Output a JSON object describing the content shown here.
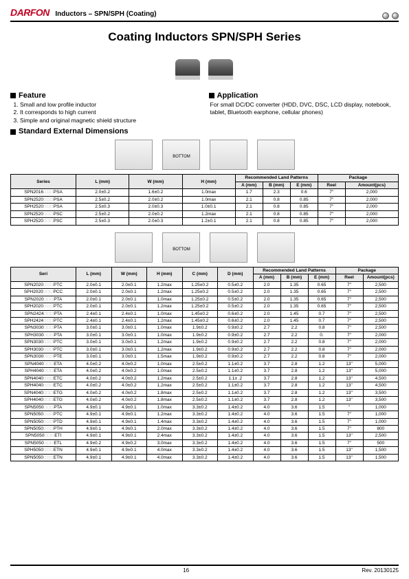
{
  "header": {
    "logo_text": "DARFON",
    "subtitle": "Inductors – SPN/SPH (Coating)"
  },
  "title": "Coating Inductors SPN/SPH Series",
  "feature": {
    "heading": "Feature",
    "items": [
      "Small and low profile inductor",
      "It corresponds to high current",
      "Simple and original magnetic shield structure"
    ]
  },
  "application": {
    "heading": "Application",
    "text": "For small DC/DC converter (HDD, DVC, DSC, LCD display, notebook, tablet, Bluetooth earphone, cellular phones)"
  },
  "std_dim_heading": "Standard External Dimensions",
  "table1": {
    "headers": {
      "series": "Series",
      "l": "L\n(mm)",
      "w": "W\n(mm)",
      "h": "H\n(mm)",
      "rec": "Recommended Land Patterns",
      "a": "A\n(mm)",
      "b": "B\n(mm)",
      "e": "E\n(mm)",
      "pkg": "Package",
      "reel": "Reel",
      "amt": "Amount(pcs)"
    },
    "rows": [
      {
        "series": "SPN2016",
        "suf": "PSA",
        "l": "2.0±0.2",
        "w": "1.6±0.2",
        "h": "1.0max",
        "a": "1.7",
        "b": "2.3",
        "e": "0.6",
        "reel": "7\"",
        "amt": "2,000"
      },
      {
        "series": "SPN2520",
        "suf": "PSA",
        "l": "2.5±0.2",
        "w": "2.0±0.2",
        "h": "1.0max",
        "a": "2.1",
        "b": "0.8",
        "e": "0.85",
        "reel": "7\"",
        "amt": "2,000"
      },
      {
        "series": "SPH2520",
        "suf": "PSA",
        "l": "2.5±0.3",
        "w": "2.0±0.3",
        "h": "1.0±0.1",
        "a": "2.1",
        "b": "0.8",
        "e": "0.85",
        "reel": "7\"",
        "amt": "2,000"
      },
      {
        "series": "SPN2520",
        "suf": "PSC",
        "l": "2.5±0.2",
        "w": "2.0±0.2",
        "h": "1.2max",
        "a": "2.1",
        "b": "0.8",
        "e": "0.85",
        "reel": "7\"",
        "amt": "2,000"
      },
      {
        "series": "SPH2520",
        "suf": "PSC",
        "l": "2.5±0.3",
        "w": "2.0±0.3",
        "h": "1.2±0.1",
        "a": "2.1",
        "b": "0.8",
        "e": "0.85",
        "reel": "7\"",
        "amt": "2,000"
      }
    ]
  },
  "table2": {
    "headers": {
      "series": "Seri",
      "l": "L\n(mm)",
      "w": "W\n(mm)",
      "h": "H\n(mm)",
      "c": "C\n(mm)",
      "d": "D\n(mm)",
      "rec": "Recommended Land Patterns",
      "a": "A\n(mm)",
      "b": "B\n(mm)",
      "e": "E\n(mm)",
      "pkg": "Package",
      "reel": "Reel",
      "amt": "Amount(pcs)"
    },
    "rows": [
      {
        "series": "SPN2020",
        "suf": "PTC",
        "l": "2.0±0.1",
        "w": "2.0±0.1",
        "h": "1.2max",
        "c": "1.25±0.2",
        "d": "0.5±0.2",
        "a": "2.0",
        "b": "1.35",
        "e": "0.65",
        "reel": "7\"",
        "amt": "2,500"
      },
      {
        "series": "SPH2020",
        "suf": "PCC",
        "l": "2.0±0.1",
        "w": "2.0±0.1",
        "h": "1.2max",
        "c": "1.25±0.2",
        "d": "0.5±0.2",
        "a": "2.0",
        "b": "1.35",
        "e": "0.65",
        "reel": "7\"",
        "amt": "2,500"
      },
      {
        "series": "SPN2020",
        "suf": "PTA",
        "l": "2.0±0.1",
        "w": "2.0±0.1",
        "h": "1.0max",
        "c": "1.25±0.2",
        "d": "0.5±0.2",
        "a": "2.0",
        "b": "1.35",
        "e": "0.65",
        "reel": "7\"",
        "amt": "2,500"
      },
      {
        "series": "SPH2020",
        "suf": "PTC",
        "l": "2.0±0.1",
        "w": "2.0±0.1",
        "h": "1.2max",
        "c": "1.25±0.2",
        "d": "0.5±0.2",
        "a": "2.0",
        "b": "1.35",
        "e": "0.65",
        "reel": "7\"",
        "amt": "2,500"
      },
      {
        "series": "SPN2424",
        "suf": "PTA",
        "l": "2.4±0.1",
        "w": "2.4±0.1",
        "h": "1.0max",
        "c": "1.45±0.2",
        "d": "0.6±0.2",
        "a": "2.0",
        "b": "1.45",
        "e": "0.7",
        "reel": "7\"",
        "amt": "2,500"
      },
      {
        "series": "SPH2424",
        "suf": "PTC",
        "l": "2.4±0.1",
        "w": "2.4±0.1",
        "h": "1.2max",
        "c": "1.45±0.2",
        "d": "0.6±0.2",
        "a": "2.0",
        "b": "1.45",
        "e": "0.7",
        "reel": "7\"",
        "amt": "2,500"
      },
      {
        "series": "SPN3030",
        "suf": "PTA",
        "l": "3.0±0.1",
        "w": "3.0±0.1",
        "h": "1.0max",
        "c": "1.9±0.2",
        "d": "0.9±0.2",
        "a": "2.7",
        "b": "2.2",
        "e": "0.8",
        "reel": "7\"",
        "amt": "2,500"
      },
      {
        "series": "SPH3030",
        "suf": "PTA",
        "l": "3.0±0.1",
        "w": "3.0±0.1",
        "h": "1.0max",
        "c": "1.9±0.2",
        "d": "0.9±0.2",
        "a": "2.7",
        "b": "2.2",
        "e": "0.",
        "reel": "7\"",
        "amt": "2,000"
      },
      {
        "series": "SPN3030",
        "suf": "PTC",
        "l": "3.0±0.1",
        "w": "3.0±0.1",
        "h": "1.2max",
        "c": "1.9±0.2",
        "d": "0.9±0.2",
        "a": "2.7",
        "b": "2.2",
        "e": "0.8",
        "reel": "7\"",
        "amt": "2,000"
      },
      {
        "series": "SPH3030",
        "suf": "PTC",
        "l": "3.0±0.1",
        "w": "3.0±0.1",
        "h": "1.2max",
        "c": "1.9±0.2",
        "d": "0.9±0.2",
        "a": "2.7",
        "b": "2.2",
        "e": "0.8",
        "reel": "7\"",
        "amt": "2,000"
      },
      {
        "series": "SPN3030",
        "suf": "PTE",
        "l": "3.0±0.1",
        "w": "3.0±0.1",
        "h": "1.5max",
        "c": "1.9±0.2",
        "d": "0.9±0.2",
        "a": "2.7",
        "b": "2.2",
        "e": "0.8",
        "reel": "7\"",
        "amt": "2,000"
      },
      {
        "series": "SPN4040",
        "suf": "ETA",
        "l": "4.0±0.2",
        "w": "4.0±0.2",
        "h": "1.0max",
        "c": "2.5±0.2",
        "d": "1.1±0.2",
        "a": "3.7",
        "b": "2.8",
        "e": "1.2",
        "reel": "13\"",
        "amt": "5,000"
      },
      {
        "series": "SPH4040",
        "suf": "ETA",
        "l": "4.0±0.2",
        "w": "4.0±0.2",
        "h": "1.0max",
        "c": "2.5±0.2",
        "d": "1.1±0.2",
        "a": "3.7",
        "b": "2.8",
        "e": "1.2",
        "reel": "13\"",
        "amt": "5,000"
      },
      {
        "series": "SPN4040",
        "suf": "ETC",
        "l": "4.0±0.2",
        "w": "4.0±0.2",
        "h": "1.2max",
        "c": "2.5±0.2",
        "d": "1.1± .2",
        "a": "3.7",
        "b": "2.8",
        "e": "1.2",
        "reel": "13\"",
        "amt": "4,500"
      },
      {
        "series": "SPH4040",
        "suf": "ETC",
        "l": "4.0±0.2",
        "w": "4.0±0.2",
        "h": "1.2max",
        "c": "2.5±0.2",
        "d": "1.1±0.2",
        "a": "3.7",
        "b": "2.8",
        "e": "1.2",
        "reel": "13\"",
        "amt": "4,500"
      },
      {
        "series": "SPN4040",
        "suf": "ETG",
        "l": "4.0±0.2",
        "w": "4.0±0.2",
        "h": "1.8max",
        "c": "2.5±0.2",
        "d": "1.1±0.2",
        "a": "3.7",
        "b": "2.8",
        "e": "1.2",
        "reel": "13\"",
        "amt": "3,500"
      },
      {
        "series": "SPH4040",
        "suf": "ETG",
        "l": "4.0±0.2",
        "w": "4.0±0.2",
        "h": "1.8max",
        "c": "2.5±0.2",
        "d": "1.1±0.2",
        "a": "3.7",
        "b": "2.8",
        "e": "1.2",
        "reel": "13\"",
        "amt": "3,500"
      },
      {
        "series": "SPN5050",
        "suf": "PTA",
        "l": "4.9±0.1",
        "w": "4.9±0.1",
        "h": "1.0max",
        "c": "3.3±0.2",
        "d": "1.4±0.2",
        "a": "4.0",
        "b": "3.6",
        "e": "1.5",
        "reel": "\"",
        "amt": "1,000"
      },
      {
        "series": "SPN5050",
        "suf": "PTC",
        "l": "4.9±0.1",
        "w": "4.9±0.1",
        "h": "1.2max",
        "c": "3.3±0.2",
        "d": "1.4±0.2",
        "a": "4.0",
        "b": "3.6",
        "e": "1.5",
        "reel": "7\"",
        "amt": "1,000"
      },
      {
        "series": "SPN5050",
        "suf": "PTD",
        "l": "4.9±0.1",
        "w": "4.9±0.1",
        "h": "1.4max",
        "c": "3.3±0.2",
        "d": "1.4±0.2",
        "a": "4.0",
        "b": "3.6",
        "e": "1.5",
        "reel": "7\"",
        "amt": "1,000"
      },
      {
        "series": "SPN5050",
        "suf": "PTH",
        "l": "4.9±0.1",
        "w": "4.9±0.1",
        "h": "2.0max",
        "c": "3.3±0.2",
        "d": "1.4±0.2",
        "a": "4.0",
        "b": "3.6",
        "e": "1.5",
        "reel": "7\"",
        "amt": "800"
      },
      {
        "series": "SPN5050",
        "suf": "ETI",
        "l": "4.9±0.1",
        "w": "4.9±0.1",
        "h": "2.4max",
        "c": "3.3±0.2",
        "d": "1.4±0.2",
        "a": "4.0",
        "b": "3.6",
        "e": "1.5",
        "reel": "13\"",
        "amt": "2,500"
      },
      {
        "series": "SPN5050",
        "suf": "ETL",
        "l": "4.9±0.2",
        "w": "4.9±0.2",
        "h": "3.0max",
        "c": "3.3±0.2",
        "d": "1.4±0.2",
        "a": "4.0",
        "b": "3.6",
        "e": "1.5",
        "reel": "7\"",
        "amt": "500"
      },
      {
        "series": "SPH5050",
        "suf": "ETN",
        "l": "4.9±0.1",
        "w": "4.9±0.1",
        "h": "4.0max",
        "c": "3.3±0.2",
        "d": "1.4±0.2",
        "a": "4.0",
        "b": "3.6",
        "e": "1.5",
        "reel": "13\"",
        "amt": "1,500"
      },
      {
        "series": "SPN5050",
        "suf": "ETN",
        "l": "4.9±0.1",
        "w": "4.9±0.1",
        "h": "4.0max",
        "c": "3.3±0.2",
        "d": "1.4±0.2",
        "a": "4.0",
        "b": "3.6",
        "e": "1.5",
        "reel": "13\"",
        "amt": "1,500"
      }
    ]
  },
  "footer": {
    "page": "16",
    "rev": "Rev. 20130125"
  }
}
